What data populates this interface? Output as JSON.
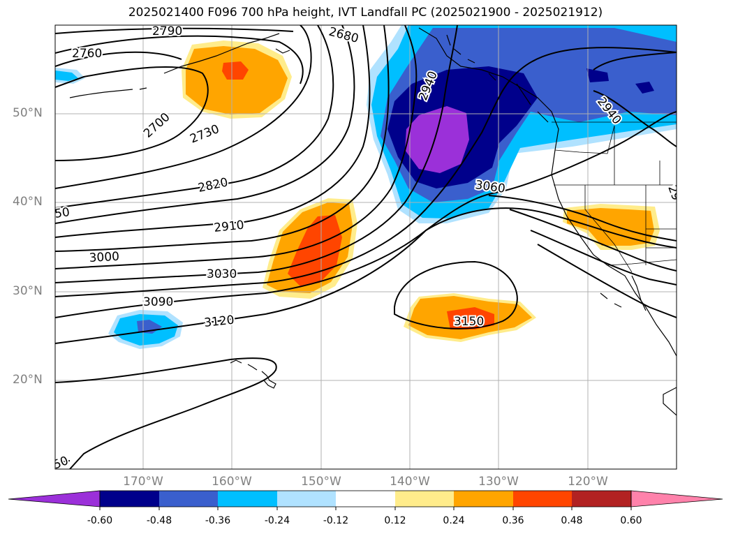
{
  "title": "2025021400 F096 700 hPa height, IVT Landfall PC (2025021900 - 2025021912)",
  "lat_labels": [
    "50°N",
    "40°N",
    "30°N",
    "20°N"
  ],
  "lon_labels": [
    "170°W",
    "160°W",
    "150°W",
    "140°W",
    "130°W",
    "120°W"
  ],
  "contour_labels": {
    "c2790": "2790",
    "c2760": "2760",
    "c2680": "2680",
    "c2700": "2700",
    "c2730": "2730",
    "c2820": "2820",
    "c2910": "2910",
    "c3000": "3000",
    "c3030": "3030",
    "c3090": "3090",
    "c3120": "3120",
    "c3150": "3150",
    "c2940": "2940",
    "c3060": "3060",
    "c2940b": "2940",
    "c50a": "50",
    "c50b": "50",
    "c29": "29"
  },
  "colorbar": {
    "ticks": [
      "-0.60",
      "-0.48",
      "-0.36",
      "-0.24",
      "-0.12",
      "0.12",
      "0.24",
      "0.36",
      "0.48",
      "0.60"
    ],
    "colors": [
      "#9b30d9",
      "#00008b",
      "#3a5fcd",
      "#00bfff",
      "#b0e2ff",
      "#ffffff",
      "#ffec8b",
      "#ffa500",
      "#ff4500",
      "#b22222",
      "#ff82ab"
    ]
  },
  "palette": {
    "purple": "#9b30d9",
    "navy": "#00008b",
    "royal": "#3a5fcd",
    "sky": "#00bfff",
    "lightblue": "#b0e2ff",
    "lightyellow": "#ffec8b",
    "orange": "#ffa500",
    "orangered": "#ff4500"
  }
}
